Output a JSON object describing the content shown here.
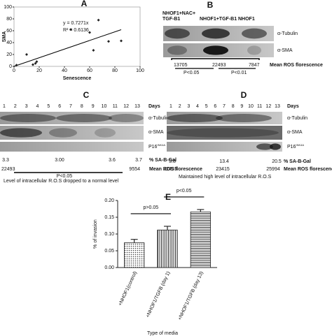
{
  "chart_data": [
    {
      "type": "scatter",
      "title": "A",
      "x_label": "Senescence",
      "y_label": "SMA",
      "x": [
        2,
        10,
        15,
        17,
        18,
        45,
        60,
        63,
        67,
        75,
        85
      ],
      "values": [
        2,
        20,
        3,
        5,
        8,
        62,
        57,
        27,
        78,
        42,
        43
      ],
      "xlim": [
        0,
        100
      ],
      "xticks": [
        0,
        20,
        40,
        60,
        80,
        100
      ],
      "ylim": [
        0,
        100
      ],
      "yticks": [
        0,
        20,
        40,
        60,
        80,
        100
      ],
      "color": "#222222",
      "trendline": {
        "slope": 0.7271,
        "label": "y = 0.7271x",
        "r2_label": "R² = 0.6136"
      }
    },
    {
      "type": "bar",
      "title": "E",
      "x_label": "Type of media",
      "y_label": "% of invasion",
      "categories": [
        "+NHOF1(control)",
        "+NHOF1/TGFB (day 1)",
        "+NHOF1/TGFB (day 13)"
      ],
      "values": [
        0.074,
        0.112,
        0.166
      ],
      "errors": [
        0.01,
        0.011,
        0.007
      ],
      "ylim": [
        0,
        0.2
      ],
      "yticks": [
        {
          "value": 0,
          "label": "0.00"
        },
        {
          "value": 0.05,
          "label": "0.05"
        },
        {
          "value": 0.1,
          "label": "0.10"
        },
        {
          "value": 0.15,
          "label": "0.15"
        },
        {
          "value": 0.2,
          "label": "0.20"
        }
      ],
      "annotations": [
        "p>0.05",
        "p<0.05"
      ]
    }
  ],
  "panels": {
    "B": {
      "label": "B",
      "column_headers": [
        "NHOF1+NAC+",
        "TGF-B1",
        "NHOF1+TGF-B1",
        "NHOF1"
      ],
      "row_labels": [
        "α-Tubulin",
        "α-SMA"
      ],
      "ros_values": [
        "13705",
        "22493",
        "7847"
      ],
      "ros_label": "Mean ROS florescence",
      "p_values": [
        "P<0.05",
        "P<0.01"
      ]
    },
    "C": {
      "label": "C",
      "lanes": [
        "1",
        "2",
        "3",
        "4",
        "5",
        "6",
        "7",
        "8",
        "9",
        "10",
        "11",
        "12",
        "13"
      ],
      "lanes_label": "Days",
      "row_labels": [
        "α-Tubulin",
        "α-SMA"
      ],
      "p16": "P16",
      "p16_sup": "INK4A",
      "sa_values": [
        "3.3",
        "3.00",
        "3.6",
        "3.7"
      ],
      "sa_label": "% SA-B-Gal",
      "ros_values": [
        "22493",
        "9554"
      ],
      "ros_label": "Mean ROS florescence",
      "p_value": "P<0.05",
      "note": "Level of intracellular R.O.S  dropped to a normal level"
    },
    "D": {
      "label": "D",
      "lanes": [
        "1",
        "2",
        "3",
        "4",
        "5",
        "6",
        "7",
        "8",
        "9",
        "10",
        "11",
        "12",
        "13"
      ],
      "lanes_label": "Days",
      "row_labels": [
        "α-Tubulin",
        "α-SMA"
      ],
      "p16": "P16",
      "p16_sup": "INK4A",
      "sa_values": [
        "3.8",
        "13.4",
        "20.5"
      ],
      "sa_label": "% SA-B-Gal",
      "ros_values": [
        "22493",
        "23415",
        "25994"
      ],
      "ros_label": "Mean ROS florescence",
      "note": "Maintained high level of intracellular R.O.S"
    }
  }
}
